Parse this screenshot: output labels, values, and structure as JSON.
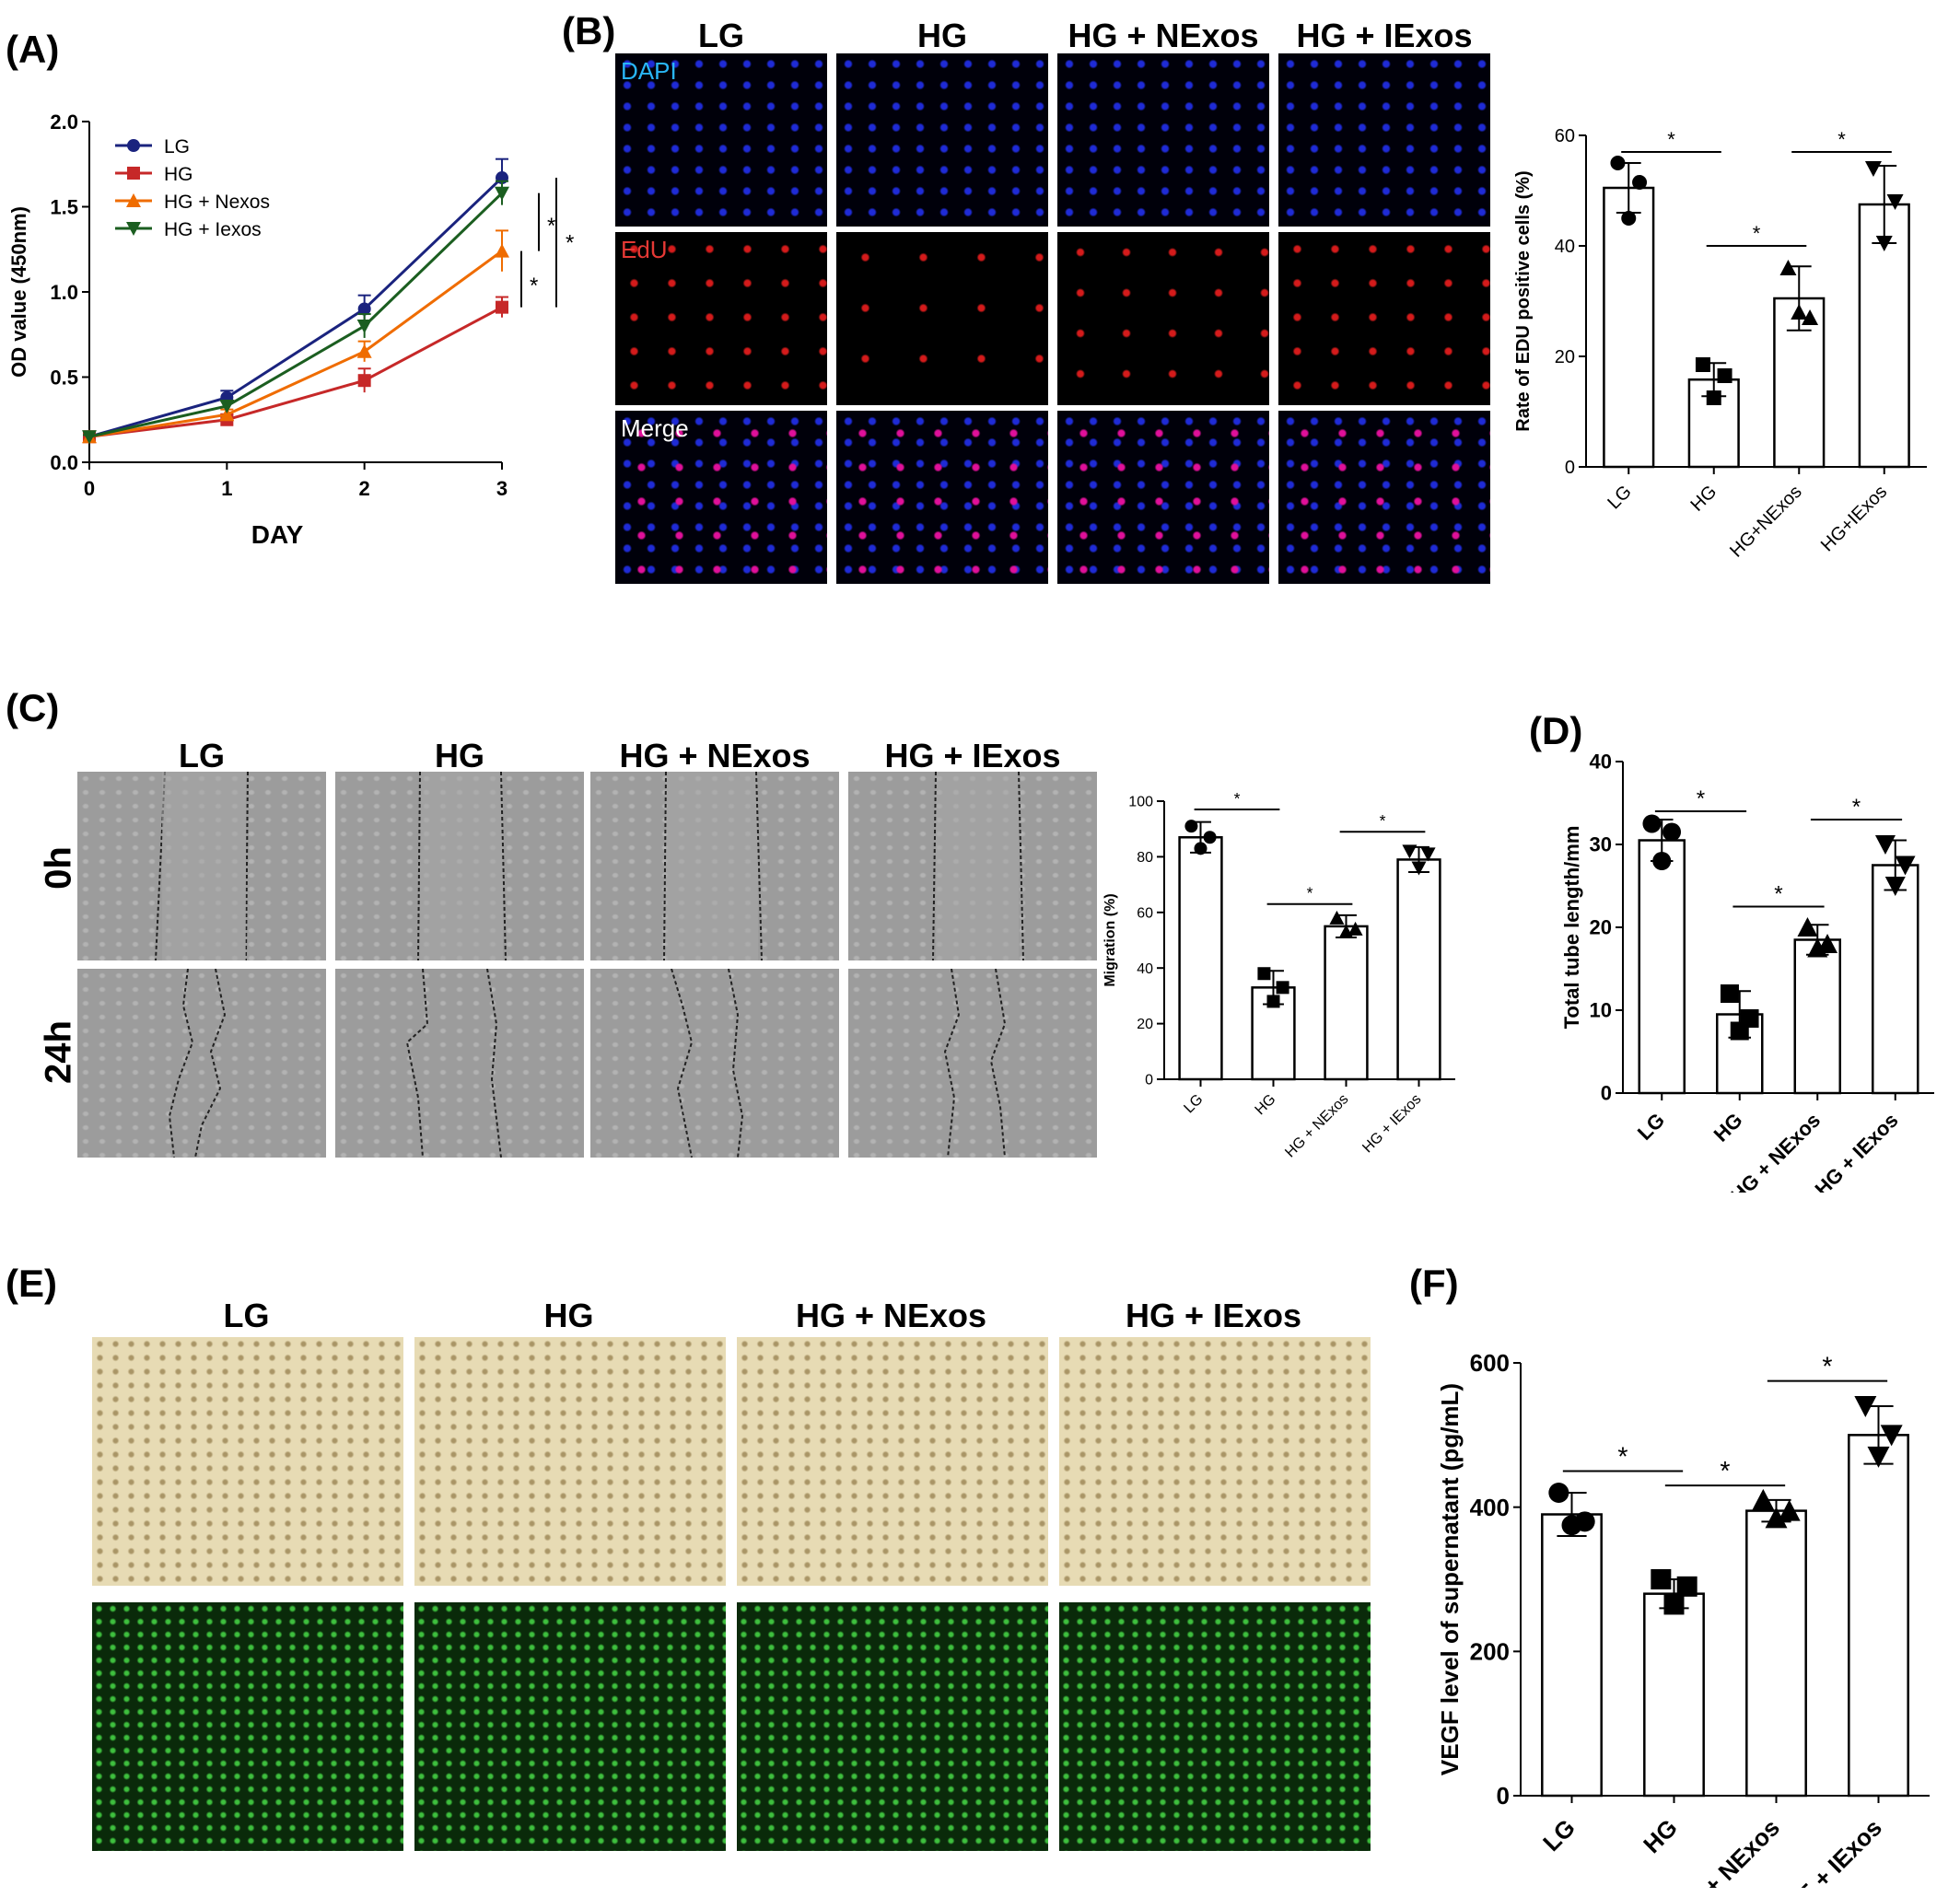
{
  "panels": {
    "a": "(A)",
    "b": "(B)",
    "c": "(C)",
    "d": "(D)",
    "e": "(E)",
    "f": "(F)"
  },
  "b_headers": [
    "LG",
    "HG",
    "HG + NExos",
    "HG + IExos"
  ],
  "b_channels": [
    "DAPI",
    "EdU",
    "Merge"
  ],
  "c_headers": [
    "LG",
    "HG",
    "HG + NExos",
    "HG + IExos"
  ],
  "c_rows": [
    "0h",
    "24h"
  ],
  "e_headers": [
    "LG",
    "HG",
    "HG + NExos",
    "HG + IExos"
  ],
  "colors": {
    "LG": "#1a237e",
    "HG": "#c62828",
    "HG + Nexos": "#ef6c00",
    "HG + Iexos": "#1b5e20",
    "dapi": "#29b6f6",
    "edu": "#e53935"
  },
  "chart_data": [
    {
      "id": "A",
      "type": "line",
      "x": [
        0,
        1,
        2,
        3
      ],
      "xlabel": "DAY",
      "ylabel": "OD value (450nm)",
      "xticks": [
        "0",
        "1",
        "2",
        "3"
      ],
      "yticks": [
        "0.0",
        "0.5",
        "1.0",
        "1.5",
        "2.0"
      ],
      "ylim": [
        0,
        2.0
      ],
      "series": [
        {
          "name": "LG",
          "values": [
            0.15,
            0.38,
            0.9,
            1.67
          ],
          "err": [
            0.01,
            0.04,
            0.08,
            0.11
          ],
          "marker": "circle"
        },
        {
          "name": "HG",
          "values": [
            0.15,
            0.25,
            0.48,
            0.91
          ],
          "err": [
            0.01,
            0.03,
            0.07,
            0.06
          ],
          "marker": "square"
        },
        {
          "name": "HG + Nexos",
          "values": [
            0.15,
            0.28,
            0.65,
            1.24
          ],
          "err": [
            0.01,
            0.03,
            0.06,
            0.12
          ],
          "marker": "triangle"
        },
        {
          "name": "HG + Iexos",
          "values": [
            0.15,
            0.33,
            0.8,
            1.58
          ],
          "err": [
            0.01,
            0.03,
            0.07,
            0.07
          ],
          "marker": "triangle-down"
        }
      ],
      "annotations": [
        "*",
        "*",
        "*"
      ]
    },
    {
      "id": "B",
      "type": "bar",
      "categories": [
        "LG",
        "HG",
        "HG+NExos",
        "HG+IExos"
      ],
      "values": [
        50.5,
        15.8,
        30.5,
        47.5
      ],
      "err": [
        4.5,
        3.0,
        5.8,
        7.0
      ],
      "points": [
        [
          55,
          51.5,
          45
        ],
        [
          18.5,
          16.5,
          12.5
        ],
        [
          36,
          27,
          28
        ],
        [
          54,
          48,
          40.5
        ]
      ],
      "ylabel": "Rate of EDU positive cells (%)",
      "yticks": [
        "0",
        "20",
        "40",
        "60"
      ],
      "ylim": [
        0,
        60
      ],
      "sig": [
        "*",
        "*",
        "*"
      ]
    },
    {
      "id": "C",
      "type": "bar",
      "categories": [
        "LG",
        "HG",
        "HG + NExos",
        "HG + IExos"
      ],
      "values": [
        87,
        33,
        55,
        79
      ],
      "err": [
        5.5,
        6.0,
        4.0,
        4.5
      ],
      "points": [
        [
          91,
          87,
          83
        ],
        [
          38,
          33,
          28
        ],
        [
          58,
          54,
          53
        ],
        [
          82,
          81,
          76
        ]
      ],
      "ylabel": "Migration (%)",
      "yticks": [
        "0",
        "20",
        "40",
        "60",
        "80",
        "100"
      ],
      "ylim": [
        0,
        100
      ],
      "sig": [
        "*",
        "*",
        "*"
      ]
    },
    {
      "id": "D",
      "type": "bar",
      "categories": [
        "LG",
        "HG",
        "HG + NExos",
        "HG + IExos"
      ],
      "values": [
        30.5,
        9.5,
        18.5,
        27.5
      ],
      "err": [
        2.5,
        2.8,
        1.8,
        3.0
      ],
      "points": [
        [
          32.5,
          31.5,
          28
        ],
        [
          12,
          9,
          7.5
        ],
        [
          20,
          18,
          17.5
        ],
        [
          30,
          27.5,
          25
        ]
      ],
      "ylabel": "Total tube length/mm",
      "yticks": [
        "0",
        "10",
        "20",
        "30",
        "40"
      ],
      "ylim": [
        0,
        40
      ],
      "sig": [
        "*",
        "*",
        "*"
      ]
    },
    {
      "id": "F",
      "type": "bar",
      "categories": [
        "LG",
        "HG",
        "HG + NExos",
        "HE + IExos"
      ],
      "values": [
        390,
        280,
        395,
        500
      ],
      "err": [
        30,
        20,
        15,
        40
      ],
      "points": [
        [
          420,
          380,
          375
        ],
        [
          300,
          290,
          265
        ],
        [
          410,
          395,
          385
        ],
        [
          540,
          500,
          470
        ]
      ],
      "ylabel": "VEGF level of supernatant (pg/mL)",
      "yticks": [
        "0",
        "200",
        "400",
        "600"
      ],
      "ylim": [
        0,
        600
      ],
      "sig": [
        "*",
        "*",
        "*"
      ]
    }
  ]
}
